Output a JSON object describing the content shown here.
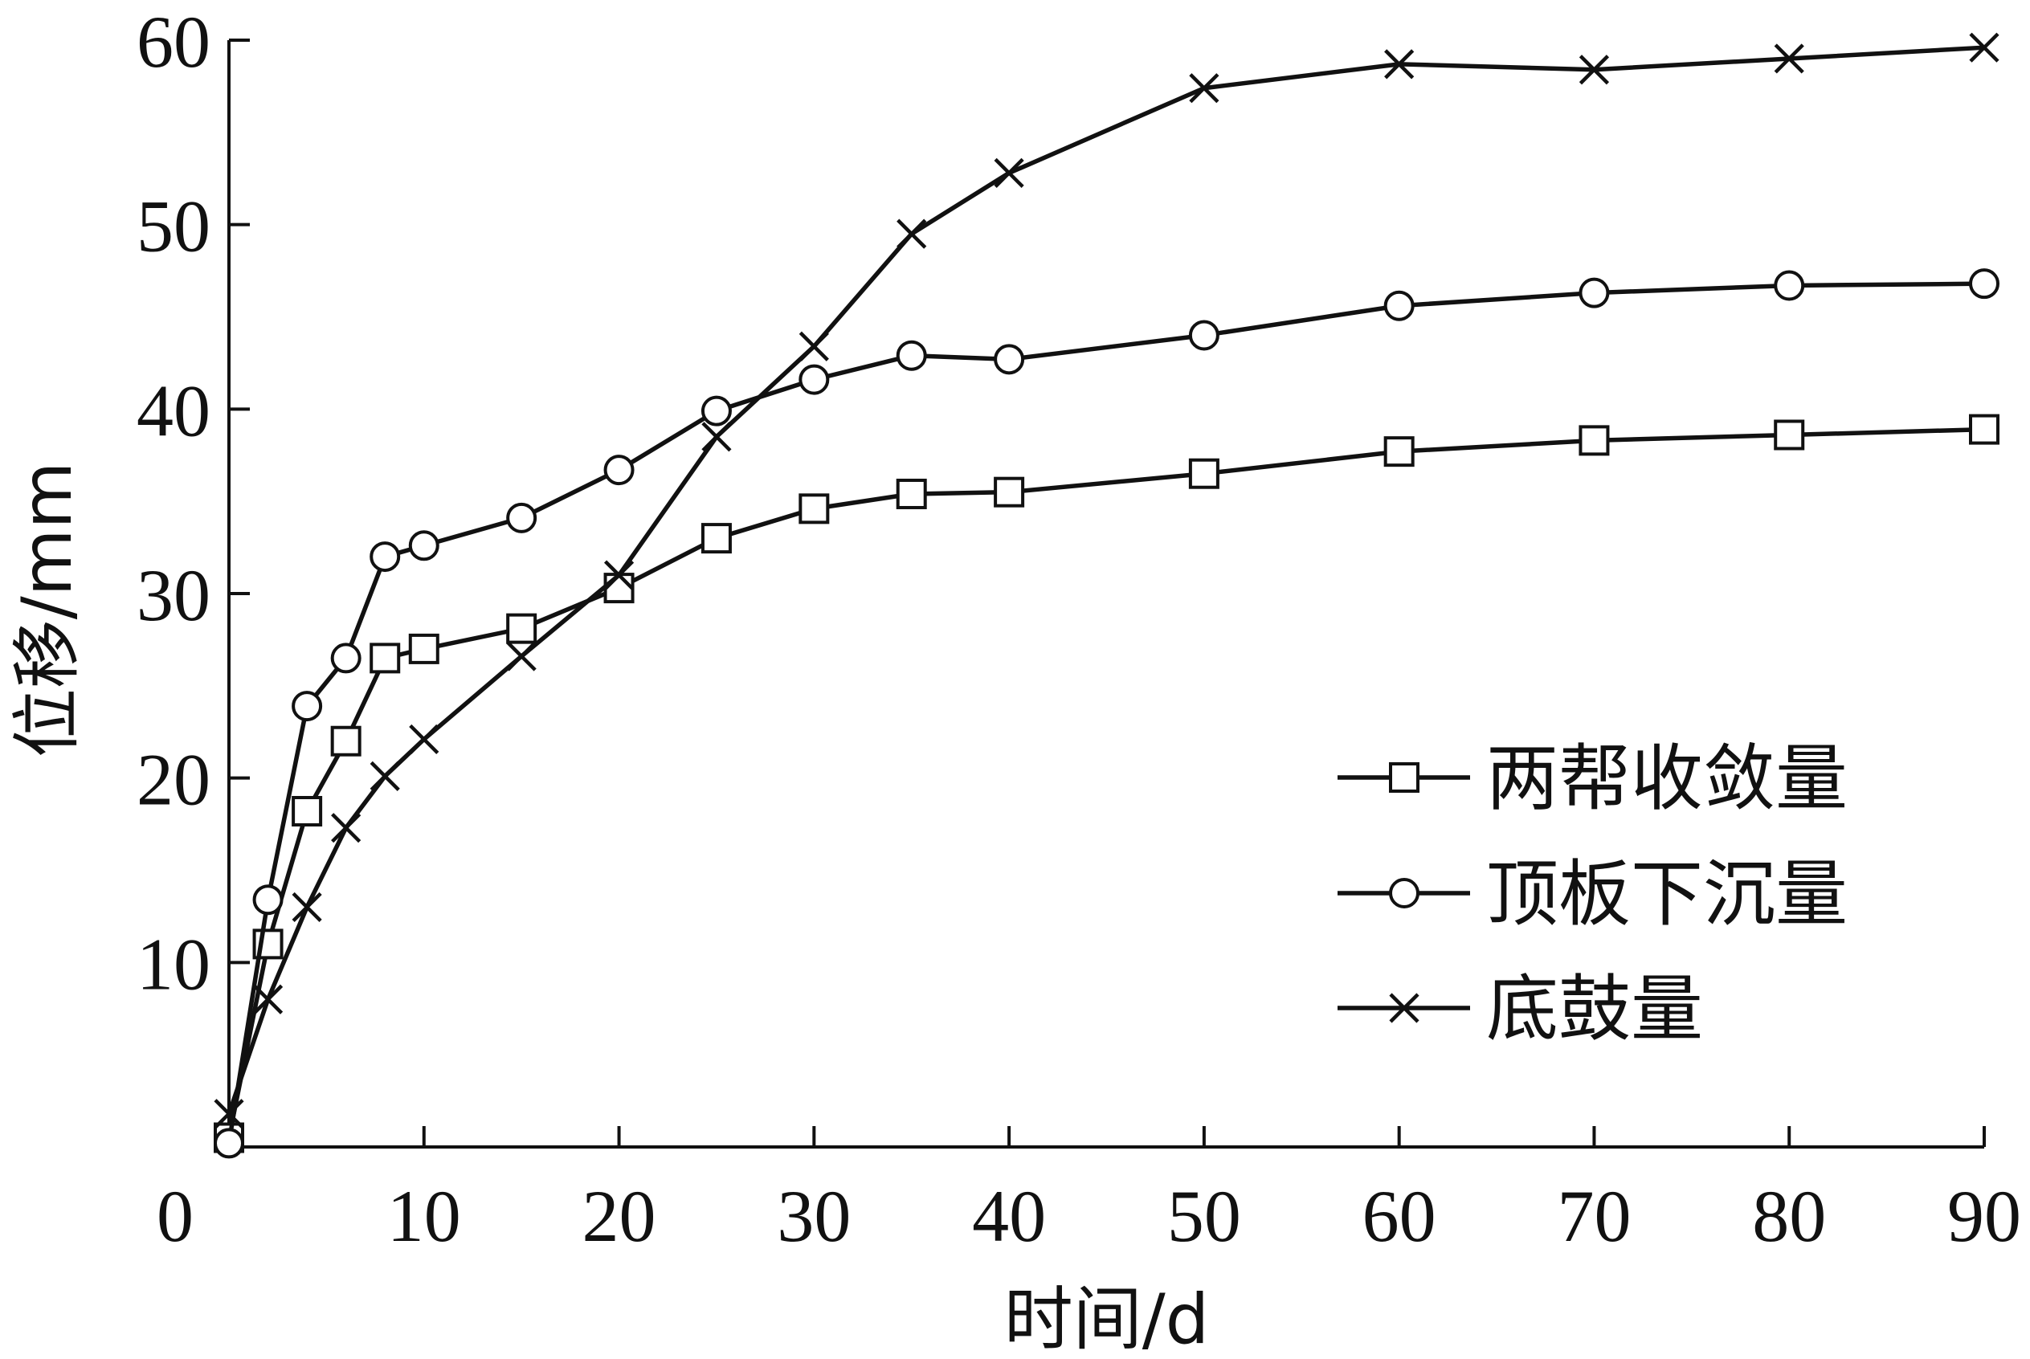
{
  "chart_data": {
    "type": "line",
    "xlabel": "时间/d",
    "ylabel": "位移/mm",
    "xlim": [
      0,
      90
    ],
    "ylim": [
      0,
      60
    ],
    "x_ticks": [
      0,
      10,
      20,
      30,
      40,
      50,
      60,
      70,
      80,
      90
    ],
    "y_ticks": [
      10,
      20,
      30,
      40,
      50,
      60
    ],
    "legend_position": "bottom-right",
    "grid": false,
    "series": [
      {
        "name": "两帮收敛量",
        "marker": "square",
        "x": [
          0,
          2,
          4,
          6,
          8,
          10,
          15,
          20,
          25,
          30,
          35,
          40,
          50,
          60,
          70,
          80,
          90
        ],
        "values": [
          0.5,
          11,
          18.2,
          22,
          26.5,
          27,
          28.1,
          30.3,
          33,
          34.6,
          35.4,
          35.5,
          36.5,
          37.7,
          38.3,
          38.6,
          38.9
        ]
      },
      {
        "name": "顶板下沉量",
        "marker": "circle",
        "x": [
          0,
          2,
          4,
          6,
          8,
          10,
          15,
          20,
          25,
          30,
          35,
          40,
          50,
          60,
          70,
          80,
          90
        ],
        "values": [
          0.2,
          13.4,
          23.9,
          26.5,
          32,
          32.6,
          34.1,
          36.7,
          39.9,
          41.6,
          42.9,
          42.7,
          44,
          45.6,
          46.3,
          46.7,
          46.8
        ]
      },
      {
        "name": "底鼓量",
        "marker": "x",
        "x": [
          0,
          2,
          4,
          6,
          8,
          10,
          15,
          20,
          25,
          30,
          35,
          40,
          50,
          60,
          70,
          80,
          90
        ],
        "values": [
          1.8,
          8,
          13,
          17.3,
          20.1,
          22.1,
          26.6,
          31,
          38.5,
          43.4,
          49.5,
          52.8,
          57.4,
          58.7,
          58.4,
          59,
          59.6
        ]
      }
    ]
  }
}
